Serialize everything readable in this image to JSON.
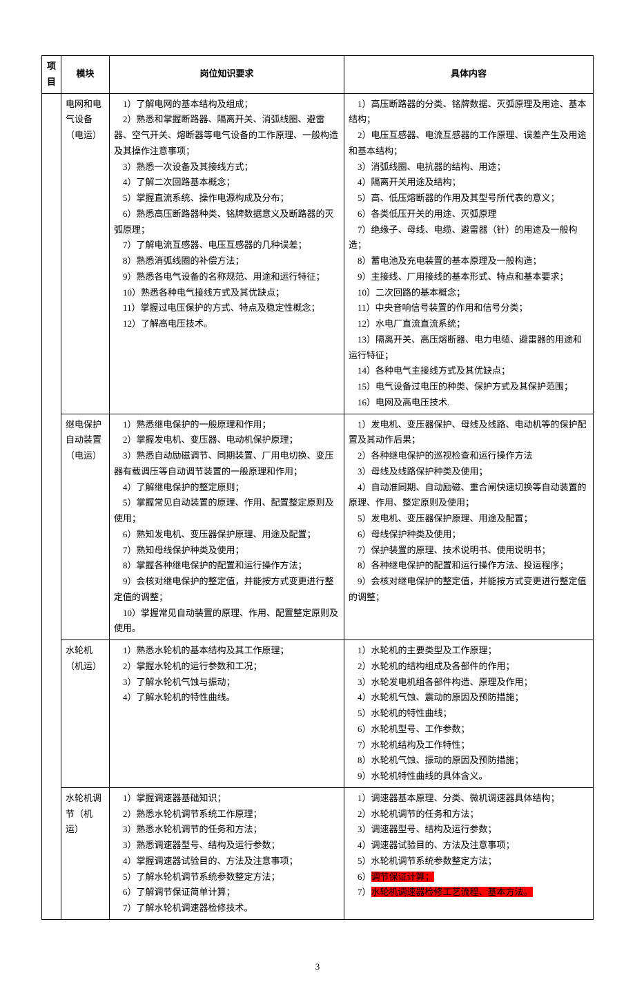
{
  "headers": {
    "project": "项目",
    "module": "模块",
    "requirement": "岗位知识要求",
    "content": "具体内容"
  },
  "rows": [
    {
      "module": "电网和电气设备（电运）",
      "requirement": "　1）了解电网的基本结构及组成；\n　2）熟悉和掌握断路器、隔离开关、消弧线圈、避雷器、空气开关、熔断器等电气设备的工作原理、一般构造及其操作注意事项；\n　3）熟悉一次设备及其接线方式；\n　4）了解二次回路基本概念；\n　5）掌握直流系统、操作电源构成及分布；\n　6）熟悉高压断路器种类、铭牌数据意义及断路器的灭弧原理；\n　7）了解电流互感器、电压互感器的几种误差；\n　8）熟悉消弧线圈的补偿方法；\n　9）熟悉各电气设备的名称规范、用途和运行特征；\n　10）熟悉各种电气接线方式及其优缺点；\n　11）掌握过电压保护的方式、特点及稳定性概念；\n　12）了解高电压技术。",
      "content": "　1）高压断路器的分类、铭牌数据、灭弧原理及用途、基本结构；\n　2）电压互感器、电流互感器的工作原理、误差产生及用途和基本结构；\n　3）消弧线圈、电抗器的结构、用途；\n　4）隔离开关用途及结构；\n　5）高、低压熔断器的作用及其型号所代表的意义；\n　6）各类低压开关的用途、灭弧原理\n　7）绝缘子、母线、电缆、避雷器（针）的用途及一般构造；\n　8）蓄电池及充电装置的基本原理及一般构造；\n　9）主接线、厂用接线的基本形式、特点和基本要求；\n　10）二次回路的基本概念；\n　11）中央音响信号装置的作用和信号分类；\n　12）水电厂直流直流系统；\n　13）隔离开关、高压熔断器、电力电缆、避雷器的用途和运行特征；\n　14）各种电气主接线方式及其优缺点；\n　15）电气设备过电压的种类、保护方式及其保护范围；\n　16）电网及高电压技术."
    },
    {
      "module": "继电保护自动装置（电运）",
      "requirement": "　1）熟悉继电保护的一般原理和作用；\n　2）掌握发电机、变压器、电动机保护原理；\n　3）熟悉自动励磁调节、同期装置、厂用电切换、变压器有载调压等自动调节装置的一般原理和作用；\n　4）了解继电保护的整定原则；\n　5）掌握常见自动装置的原理、作用、配置整定原则及使用；\n　6）熟知发电机、变压器保护原理、用途及配置；\n　7）熟知母线保护种类及使用；\n　8）掌握各种继电保护的配置和运行操作方法；\n　9）会核对继电保护的整定值，并能按方式变更进行整定值的调整；\n　10）掌握常见自动装置的原理、作用、配置整定原则及使用。",
      "content": "　1）发电机、变压器保护、母线及线路、电动机等的保护配置及其动作后果；\n　2）各种继电保护的巡视检查和运行操作方法\n　3）母线及线路保护种类及使用；\n　4）自动准同期、自动励磁、重合闸快速切换等自动装置的原理、作用、整定原则及使用；\n　5）发电机、变压器保护原理、用途及配置；\n　6）母线保护种类及使用；\n　7）保护装置的原理、技术说明书、使用说明书；\n　8）各种继电保护的配置和运行操作方法、投运程序；\n　9）会核对继电保护的整定值，并能按方式变更进行整定值的调整；"
    },
    {
      "module": "水轮机（机运）",
      "requirement": "　1）熟悉水轮机的基本结构及其工作原理；\n　2）掌握水轮机的运行参数和工况；\n　3）了解水轮机气蚀与振动；\n　4）了解水轮机的特性曲线。",
      "content": "　1）水轮机的主要类型及工作原理；\n　2）水轮机的结构组成及各部件的作用；\n　3）水轮发电机组各部件构造、原理及作用；\n　4）水轮机气蚀、震动的原因及预防措施；\n　5）水轮机的特性曲线；\n　6）水轮机型号、工作参数；\n　7）水轮机结构及工作特性；\n　8）水轮机气蚀、振动的原因及预防措施；\n　9）水轮机特性曲线的具体含义。"
    },
    {
      "module": "水轮机调节（机运）",
      "requirement": "　1）掌握调速器基础知识；\n　2）熟悉水轮机调节系统工作原理；\n　3）熟悉水轮机调节的任务和方法；\n　3）熟悉调速器型号、结构及运行参数；\n　4）掌握调速器试验目的、方法及注意事项；\n　5）了解水轮机调节系统参数整定方法；\n　6）了解调节保证简单计算；\n　7）了解水轮机调速器检修技术。",
      "content_parts": [
        {
          "text": "　1）调速器基本原理、分类、微机调速器具体结构；\n　2）水轮机调节的任务和方法；\n　3）调速器型号、结构及运行参数；\n　4）调速器试验目的、方法及注意事项；\n　5）水轮机调节系统参数整定方法；\n　6）",
          "highlight": false
        },
        {
          "text": "调节保证计算；",
          "highlight": true
        },
        {
          "text": "\n　7）",
          "highlight": false
        },
        {
          "text": "水轮机调速器检修工艺流程、基本方法。",
          "highlight": true
        }
      ]
    }
  ],
  "pageNumber": "3",
  "style": {
    "highlight_bg": "#ff0000",
    "border_color": "#000000",
    "font_size": 13,
    "line_height": 1.75
  }
}
